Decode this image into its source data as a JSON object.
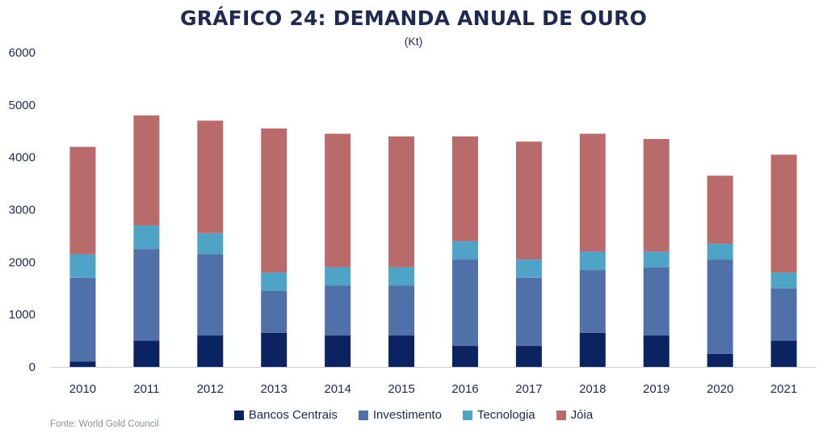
{
  "header": {
    "title": "GRÁFICO 24: DEMANDA ANUAL DE OURO",
    "subtitle": "(Kt)"
  },
  "source": "Fonte: World Gold Council",
  "colors": {
    "bancos_centrais": "#0b2360",
    "investimento": "#4f70a8",
    "tecnologia": "#4fa3c7",
    "joia": "#b96b6b",
    "axis_text": "#1f2a50"
  },
  "chart_data": {
    "type": "bar",
    "stacked": true,
    "title": "GRÁFICO 24: DEMANDA ANUAL DE OURO",
    "subtitle": "(Kt)",
    "xlabel": "",
    "ylabel": "",
    "ylim": [
      0,
      6000
    ],
    "yticks": [
      0,
      1000,
      2000,
      3000,
      4000,
      5000,
      6000
    ],
    "grid": false,
    "legend_position": "bottom",
    "categories": [
      "2010",
      "2011",
      "2012",
      "2013",
      "2014",
      "2015",
      "2016",
      "2017",
      "2018",
      "2019",
      "2020",
      "2021"
    ],
    "series": [
      {
        "name": "Bancos Centrais",
        "color": "#0b2360",
        "values": [
          100,
          500,
          600,
          650,
          600,
          600,
          400,
          400,
          650,
          600,
          250,
          500
        ]
      },
      {
        "name": "Investimento",
        "color": "#4f70a8",
        "values": [
          1600,
          1750,
          1550,
          800,
          950,
          950,
          1650,
          1300,
          1200,
          1300,
          1800,
          1000
        ]
      },
      {
        "name": "Tecnologia",
        "color": "#4fa3c7",
        "values": [
          450,
          450,
          400,
          350,
          350,
          350,
          350,
          350,
          350,
          300,
          300,
          300
        ]
      },
      {
        "name": "Jóia",
        "color": "#b96b6b",
        "values": [
          2050,
          2100,
          2150,
          2750,
          2550,
          2500,
          2000,
          2250,
          2250,
          2150,
          1300,
          2250
        ]
      }
    ]
  }
}
